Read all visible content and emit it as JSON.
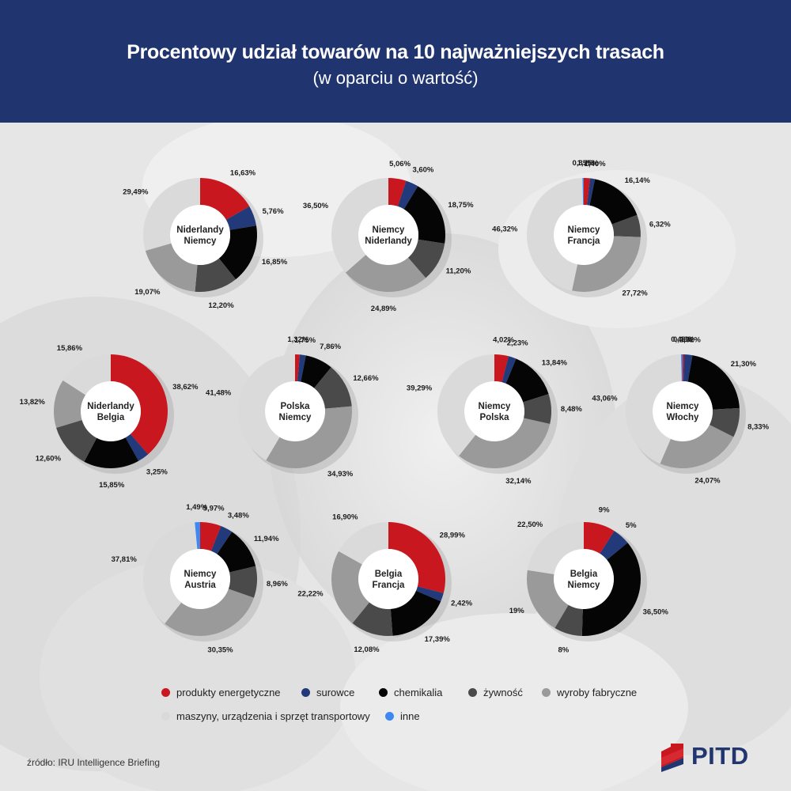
{
  "header": {
    "title": "Procentowy udział towarów na 10 najważniejszych trasach",
    "subtitle": "(w oparciu o wartość)"
  },
  "categories": [
    "produkty energetyczne",
    "surowce",
    "chemikalia",
    "żywność",
    "wyroby fabryczne",
    "maszyny, urządzenia i sprzęt transportowy",
    "inne"
  ],
  "colors": [
    "#c8171e",
    "#233a7a",
    "#050505",
    "#4a4a4a",
    "#9a9a9a",
    "#dadada",
    "#3f88f2"
  ],
  "legend": {
    "items": [
      {
        "label": "produkty energetyczne",
        "color": "#c8171e"
      },
      {
        "label": "surowce",
        "color": "#233a7a"
      },
      {
        "label": "chemikalia",
        "color": "#050505"
      },
      {
        "label": "żywność",
        "color": "#4a4a4a"
      },
      {
        "label": "wyroby fabryczne",
        "color": "#9a9a9a"
      },
      {
        "label": "maszyny, urządzenia i sprzęt transportowy",
        "color": "#dadada"
      },
      {
        "label": "inne",
        "color": "#3f88f2"
      }
    ]
  },
  "chart_data": [
    {
      "type": "pie",
      "variant": "donut",
      "title": "Niderlandy Niemcy",
      "title_lines": [
        "Niderlandy",
        "Niemcy"
      ],
      "values": [
        16.63,
        5.76,
        16.85,
        12.2,
        19.07,
        29.49,
        0
      ],
      "labels": [
        "16,63%",
        "5,76%",
        "16,85%",
        "12,20%",
        "19,07%",
        "29,49%",
        ""
      ]
    },
    {
      "type": "pie",
      "variant": "donut",
      "title": "Niemcy Niderlandy",
      "title_lines": [
        "Niemcy",
        "Niderlandy"
      ],
      "values": [
        5.06,
        3.6,
        18.75,
        11.2,
        24.89,
        36.5,
        0
      ],
      "labels": [
        "5,06%",
        "3,60%",
        "18,75%",
        "11,20%",
        "24,89%",
        "36,50%",
        ""
      ]
    },
    {
      "type": "pie",
      "variant": "donut",
      "title": "Niemcy Francja",
      "title_lines": [
        "Niemcy",
        "Francja"
      ],
      "values": [
        1.75,
        1.4,
        16.14,
        6.32,
        27.72,
        46.32,
        0.35
      ],
      "labels": [
        "1,75%",
        "1,40%",
        "16,14%",
        "6,32%",
        "27,72%",
        "46,32%",
        "0,35%"
      ]
    },
    {
      "type": "pie",
      "variant": "donut",
      "title": "Niderlandy Belgia",
      "title_lines": [
        "Niderlandy",
        "Belgia"
      ],
      "values": [
        38.62,
        3.25,
        15.85,
        12.6,
        13.82,
        15.86,
        0
      ],
      "labels": [
        "38,62%",
        "3,25%",
        "15,85%",
        "12,60%",
        "13,82%",
        "15,86%",
        ""
      ]
    },
    {
      "type": "pie",
      "variant": "donut",
      "title": "Polska Niemcy",
      "title_lines": [
        "Polska",
        "Niemcy"
      ],
      "values": [
        1.32,
        1.75,
        7.86,
        12.66,
        34.93,
        41.48,
        0
      ],
      "labels": [
        "1,32%",
        "1,75%",
        "7,86%",
        "12,66%",
        "34,93%",
        "41,48%",
        ""
      ]
    },
    {
      "type": "pie",
      "variant": "donut",
      "title": "Niemcy Polska",
      "title_lines": [
        "Niemcy",
        "Polska"
      ],
      "values": [
        4.02,
        2.23,
        13.84,
        8.48,
        32.14,
        39.29,
        0
      ],
      "labels": [
        "4,02%",
        "2,23%",
        "13,84%",
        "8,48%",
        "32,14%",
        "39,29%",
        ""
      ]
    },
    {
      "type": "pie",
      "variant": "donut",
      "title": "Niemcy Włochy",
      "title_lines": [
        "Niemcy",
        "Włochy"
      ],
      "values": [
        0.46,
        2.32,
        21.3,
        8.33,
        24.07,
        43.06,
        0.46
      ],
      "labels": [
        "0,46%",
        "2,32%",
        "21,30%",
        "8,33%",
        "24,07%",
        "43,06%",
        "0,46%"
      ]
    },
    {
      "type": "pie",
      "variant": "donut",
      "title": "Niemcy Austria",
      "title_lines": [
        "Niemcy",
        "Austria"
      ],
      "values": [
        5.97,
        3.48,
        11.94,
        8.96,
        30.35,
        37.81,
        1.49
      ],
      "labels": [
        "5,97%",
        "3,48%",
        "11,94%",
        "8,96%",
        "30,35%",
        "37,81%",
        "1,49%"
      ]
    },
    {
      "type": "pie",
      "variant": "donut",
      "title": "Belgia Francja",
      "title_lines": [
        "Belgia",
        "Francja"
      ],
      "values": [
        28.99,
        2.42,
        17.39,
        12.08,
        22.22,
        16.9,
        0
      ],
      "labels": [
        "28,99%",
        "2,42%",
        "17,39%",
        "12,08%",
        "22,22%",
        "16,90%",
        ""
      ]
    },
    {
      "type": "pie",
      "variant": "donut",
      "title": "Belgia Niemcy",
      "title_lines": [
        "Belgia",
        "Niemcy"
      ],
      "values": [
        9,
        5,
        36.5,
        8,
        19,
        22.5,
        0
      ],
      "labels": [
        "9%",
        "5%",
        "36,50%",
        "8%",
        "19%",
        "22,50%",
        ""
      ]
    }
  ],
  "footer": {
    "source": "źródło: IRU Intelligence Briefing",
    "logo_text": "PITD"
  }
}
